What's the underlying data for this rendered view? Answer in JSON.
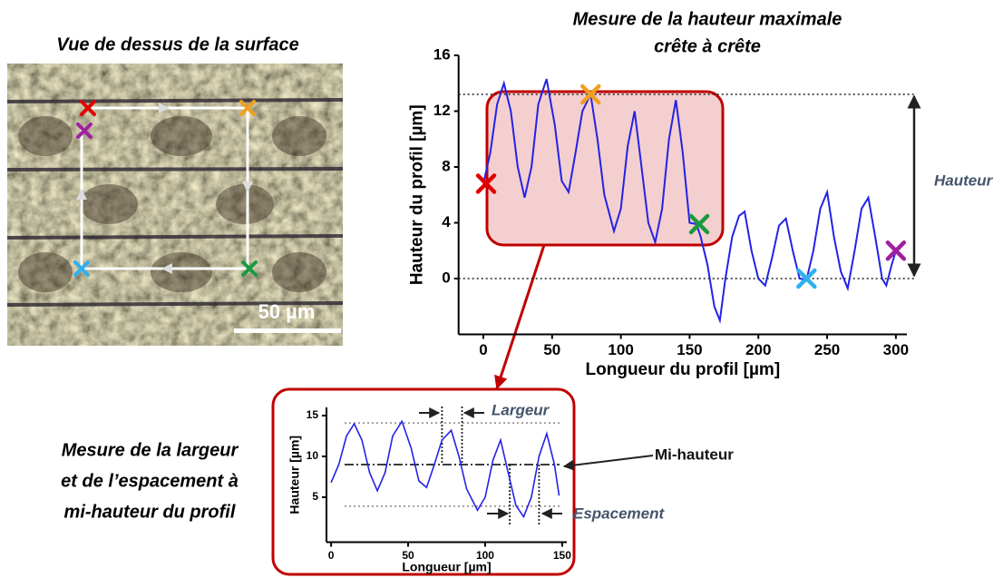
{
  "image_panel": {
    "title": "Vue de dessus de la surface",
    "scale_label": "50 µm"
  },
  "chart_data": [
    {
      "type": "line",
      "title_lines": [
        "Mesure de la hauteur maximale",
        "crête à crête"
      ],
      "x_label": "Longueur du profil [µm]",
      "y_label": "Hauteur du profil [µm]",
      "x": [
        0,
        5,
        10,
        15,
        20,
        25,
        30,
        35,
        40,
        46,
        52,
        57,
        62,
        67,
        72,
        78,
        83,
        88,
        95,
        100,
        105,
        110,
        115,
        120,
        125,
        130,
        135,
        140,
        145,
        150,
        155,
        158,
        163,
        168,
        172,
        176,
        181,
        186,
        190,
        195,
        200,
        205,
        210,
        215,
        220,
        225,
        230,
        235,
        240,
        245,
        250,
        255,
        260,
        265,
        270,
        275,
        280,
        285,
        290,
        293,
        297,
        300
      ],
      "y": [
        6.8,
        9,
        12.5,
        14,
        12,
        8,
        5.8,
        8,
        12.5,
        14.3,
        11,
        7,
        6.2,
        9,
        12,
        13.2,
        10,
        6,
        3.4,
        5,
        9.5,
        12,
        8,
        4,
        2.6,
        5,
        10,
        12.8,
        9,
        4,
        3.9,
        3,
        1,
        -2,
        -3,
        0,
        3,
        4.5,
        4.8,
        2,
        0,
        -0.5,
        1.5,
        3.8,
        4.3,
        2,
        0,
        -0.1,
        2,
        5,
        6.2,
        3,
        0.5,
        -0.7,
        2,
        5,
        5.8,
        3,
        0,
        -0.5,
        1,
        2
      ],
      "color": "#2323e6",
      "xlim": [
        -18,
        308
      ],
      "ylim": [
        -4,
        16
      ],
      "xticks": [
        0,
        50,
        100,
        150,
        200,
        250,
        300
      ],
      "yticks": [
        0,
        4,
        8,
        12,
        16
      ],
      "markers": [
        {
          "x": 2,
          "y": 6.8,
          "color": "#e00000"
        },
        {
          "x": 78,
          "y": 13.2,
          "color": "#f0a020"
        },
        {
          "x": 157,
          "y": 3.9,
          "color": "#1a9a40"
        },
        {
          "x": 235,
          "y": 0,
          "color": "#30b0f0"
        },
        {
          "x": 300,
          "y": 2,
          "color": "#a020a0"
        }
      ],
      "hlines": [
        13.2,
        0
      ],
      "annotations": [
        "Hauteur"
      ]
    },
    {
      "type": "line",
      "title_lines": [
        "Mesure de la largeur",
        "et de l’espacement à",
        "mi-hauteur du profil"
      ],
      "x_label": "Longueur [µm]",
      "y_label": "Hauteur [µm]",
      "x": [
        0,
        5,
        10,
        15,
        20,
        25,
        30,
        35,
        40,
        46,
        52,
        57,
        62,
        67,
        72,
        78,
        83,
        88,
        95,
        100,
        105,
        110,
        115,
        120,
        125,
        130,
        135,
        140,
        145,
        148
      ],
      "y": [
        6.8,
        9,
        12.5,
        14,
        12,
        8,
        5.8,
        8,
        12.5,
        14.3,
        11,
        7,
        6.2,
        9,
        12,
        13.2,
        10,
        6,
        3.4,
        5,
        9.5,
        12,
        8,
        4,
        2.6,
        5,
        10,
        12.8,
        9,
        5.2
      ],
      "color": "#2323e6",
      "xlim": [
        -3,
        153
      ],
      "ylim": [
        -0.5,
        16
      ],
      "xticks": [
        0,
        50,
        100,
        150
      ],
      "yticks": [
        5,
        10,
        15
      ],
      "hlines": [
        14.1,
        9,
        3.9
      ],
      "vlines": [
        72,
        85,
        116,
        135
      ],
      "annotations": [
        "Largeur",
        "Mi-hauteur",
        "Espacement"
      ]
    }
  ]
}
